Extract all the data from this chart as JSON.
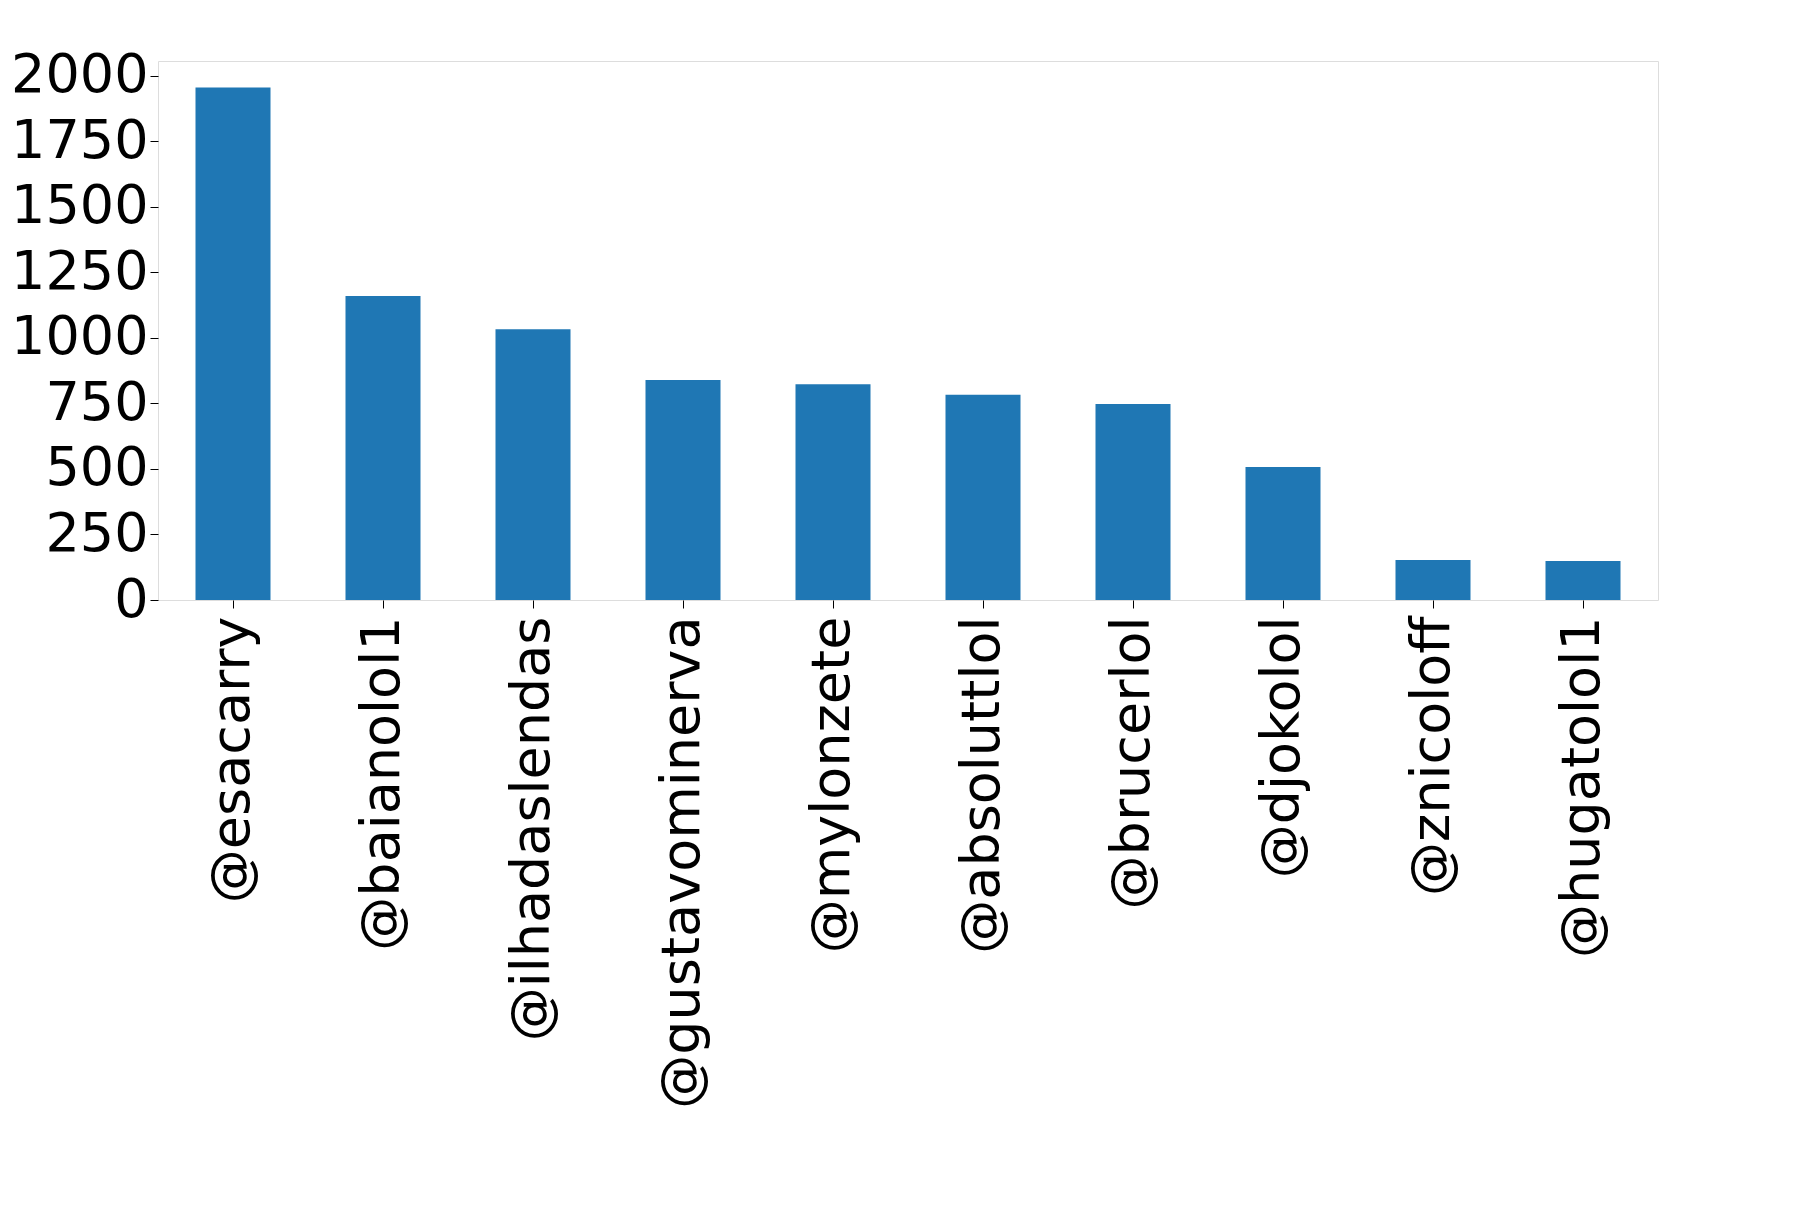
{
  "chart_data": {
    "type": "bar",
    "categories": [
      "@esacarry",
      "@baianolol1",
      "@ilhadaslendas",
      "@gustavominerva",
      "@mylonzete",
      "@absoluttlol",
      "@brucerlol",
      "@djokolol",
      "@znicoloff",
      "@hugatolol1"
    ],
    "values": [
      1956,
      1160,
      1033,
      840,
      823,
      783,
      748,
      508,
      153,
      149
    ],
    "color": "#1f77b4",
    "ylim": [
      0,
      2057
    ],
    "yticks": [
      0,
      250,
      500,
      750,
      1000,
      1250,
      1500,
      1750,
      2000
    ],
    "grid": false
  }
}
